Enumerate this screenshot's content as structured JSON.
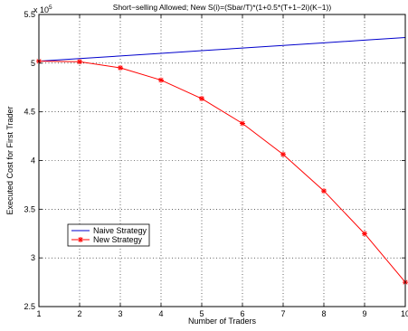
{
  "chart_data": {
    "type": "line",
    "title": "Short−selling Allowed; New S(i)=(Sbar/T)*(1+0.5*(T+1−2i)(K−1))",
    "xlabel": "Number of Traders",
    "ylabel": "Executed Cost for First Trader",
    "y_multiplier_label": "x 10",
    "y_multiplier_exponent": "5",
    "xlim": [
      1,
      10
    ],
    "ylim": [
      2.5,
      5.5
    ],
    "x_ticks": [
      "1",
      "2",
      "3",
      "4",
      "5",
      "6",
      "7",
      "8",
      "9",
      "10"
    ],
    "y_ticks": [
      "2.5",
      "3",
      "3.5",
      "4",
      "4.5",
      "5",
      "5.5"
    ],
    "grid": true,
    "legend_position": "lower-left",
    "x": [
      1,
      2,
      3,
      4,
      5,
      6,
      7,
      8,
      9,
      10
    ],
    "series": [
      {
        "name": "Naive Strategy",
        "color": "#0000cc",
        "marker": "none",
        "values": [
          5.02,
          5.047,
          5.074,
          5.101,
          5.128,
          5.155,
          5.182,
          5.209,
          5.236,
          5.263
        ]
      },
      {
        "name": "New Strategy",
        "color": "#ff0000",
        "marker": "star",
        "values": [
          5.02,
          5.015,
          4.952,
          4.826,
          4.636,
          4.381,
          4.063,
          3.688,
          3.249,
          2.75
        ]
      }
    ]
  }
}
